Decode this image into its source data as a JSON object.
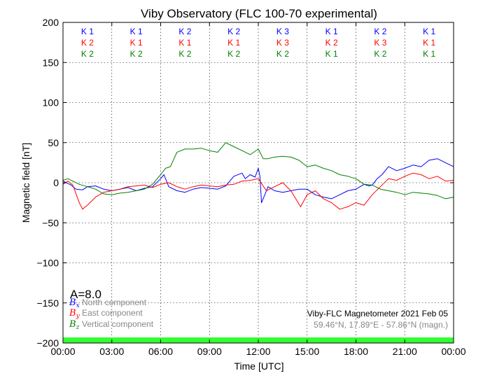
{
  "chart_data": {
    "type": "line",
    "title": "Viby Observatory (FLC 100-70 experimental)",
    "xlabel": "Time [UTC]",
    "ylabel": "Magnetic field [nT]",
    "ylim": [
      -200,
      200
    ],
    "yticks": [
      200,
      150,
      100,
      50,
      0,
      -50,
      -100,
      -150,
      -200
    ],
    "ytick_labels": [
      "200",
      "150",
      "100",
      "50",
      "0",
      "−50",
      "−100",
      "−150",
      "−200"
    ],
    "xlim_hours": [
      0,
      24
    ],
    "xticks_hours": [
      0,
      3,
      6,
      9,
      12,
      15,
      18,
      21,
      24
    ],
    "xtick_labels": [
      "00:00",
      "03:00",
      "06:00",
      "09:00",
      "12:00",
      "15:00",
      "18:00",
      "21:00",
      "00:00"
    ],
    "grid": true,
    "legend_position": "bottom-left",
    "series": [
      {
        "name": "North component",
        "symbol": "B",
        "subscript": "x",
        "color": "#0000ff",
        "x": [
          0,
          0.5,
          0.8,
          1.2,
          1.5,
          2,
          2.5,
          3,
          3.5,
          4,
          4.5,
          5,
          5.5,
          6,
          6.2,
          6.5,
          7,
          7.5,
          8,
          8.5,
          9,
          9.5,
          10,
          10.5,
          11,
          11.2,
          11.5,
          11.8,
          12,
          12.1,
          12.2,
          12.4,
          12.6,
          13,
          13.5,
          14,
          14.5,
          15,
          15.5,
          16,
          16.5,
          17,
          17.5,
          18,
          18.5,
          18.8,
          19,
          19.3,
          19.6,
          20,
          20.5,
          21,
          21.5,
          22,
          22.5,
          23,
          23.5,
          24
        ],
        "y": [
          2,
          -3,
          -8,
          -9,
          -5,
          -4,
          -8,
          -10,
          -8,
          -6,
          -10,
          -7,
          -5,
          5,
          10,
          -5,
          -10,
          -12,
          -8,
          -6,
          -7,
          -8,
          -4,
          8,
          12,
          5,
          10,
          7,
          18,
          8,
          -25,
          -15,
          -5,
          -10,
          -12,
          -10,
          -8,
          -8,
          -15,
          -18,
          -20,
          -15,
          -10,
          -8,
          -2,
          -4,
          -3,
          5,
          10,
          20,
          15,
          18,
          22,
          20,
          28,
          30,
          25,
          20
        ]
      },
      {
        "name": "East component",
        "symbol": "B",
        "subscript": "y",
        "color": "#ff0000",
        "x": [
          0,
          0.3,
          0.6,
          1,
          1.2,
          1.5,
          2,
          2.5,
          3,
          3.5,
          4,
          4.5,
          5,
          5.5,
          6,
          6.5,
          7,
          7.5,
          8,
          8.5,
          9,
          9.5,
          10,
          10.5,
          11,
          11.5,
          12,
          12.5,
          13,
          13.5,
          14,
          14.3,
          14.6,
          15,
          15.5,
          16,
          16.5,
          17,
          17.5,
          18,
          18.5,
          19,
          19.5,
          20,
          20.5,
          21,
          21.5,
          22,
          22.5,
          23,
          23.5,
          24
        ],
        "y": [
          -2,
          2,
          -3,
          -25,
          -33,
          -28,
          -18,
          -12,
          -10,
          -8,
          -5,
          -4,
          -3,
          -6,
          -2,
          0,
          -5,
          -8,
          -5,
          -3,
          -4,
          -5,
          -3,
          -2,
          2,
          3,
          5,
          -10,
          -5,
          0,
          -10,
          -20,
          -30,
          -15,
          -10,
          -20,
          -25,
          -33,
          -30,
          -25,
          -28,
          -15,
          -5,
          5,
          3,
          8,
          12,
          10,
          5,
          8,
          2,
          3
        ]
      },
      {
        "name": "Vertical component",
        "symbol": "B",
        "subscript": "z",
        "color": "#008000",
        "x": [
          0,
          0.3,
          0.6,
          1,
          1.5,
          2,
          2.5,
          3,
          3.5,
          4,
          4.5,
          5,
          5.5,
          6,
          6.3,
          6.6,
          7,
          7.5,
          8,
          8.5,
          9,
          9.5,
          10,
          10.5,
          11,
          11.5,
          12,
          12.3,
          12.6,
          13,
          13.5,
          14,
          14.5,
          15,
          15.5,
          16,
          16.5,
          17,
          17.5,
          18,
          18.5,
          19,
          19.5,
          20,
          20.5,
          21,
          21.5,
          22,
          22.5,
          23,
          23.5,
          24
        ],
        "y": [
          3,
          5,
          2,
          -2,
          -5,
          -8,
          -14,
          -15,
          -13,
          -12,
          -10,
          -8,
          -2,
          10,
          18,
          20,
          38,
          42,
          42,
          43,
          40,
          38,
          50,
          45,
          40,
          35,
          42,
          30,
          30,
          32,
          33,
          32,
          28,
          20,
          22,
          18,
          15,
          10,
          8,
          5,
          -2,
          -3,
          -8,
          -10,
          -12,
          -15,
          -12,
          -13,
          -14,
          -16,
          -20,
          -18
        ]
      }
    ],
    "k_indices": [
      {
        "north": "K 1",
        "east": "K 2",
        "vertical": "K 2"
      },
      {
        "north": "K 1",
        "east": "K 1",
        "vertical": "K 2"
      },
      {
        "north": "K 2",
        "east": "K 1",
        "vertical": "K 2"
      },
      {
        "north": "K 2",
        "east": "K 1",
        "vertical": "K 2"
      },
      {
        "north": "K 3",
        "east": "K 3",
        "vertical": "K 2"
      },
      {
        "north": "K 1",
        "east": "K 2",
        "vertical": "K 1"
      },
      {
        "north": "K 2",
        "east": "K 3",
        "vertical": "K 2"
      },
      {
        "north": "K 1",
        "east": "K 1",
        "vertical": "K 1"
      }
    ],
    "a_index": "A=8.0",
    "status_bar_color": "#33ff33"
  },
  "info": {
    "line1": "Viby-FLC Magnetometer 2021 Feb 05",
    "line2": "59.46°N, 17.89°E - 57.86°N (magn.)"
  }
}
